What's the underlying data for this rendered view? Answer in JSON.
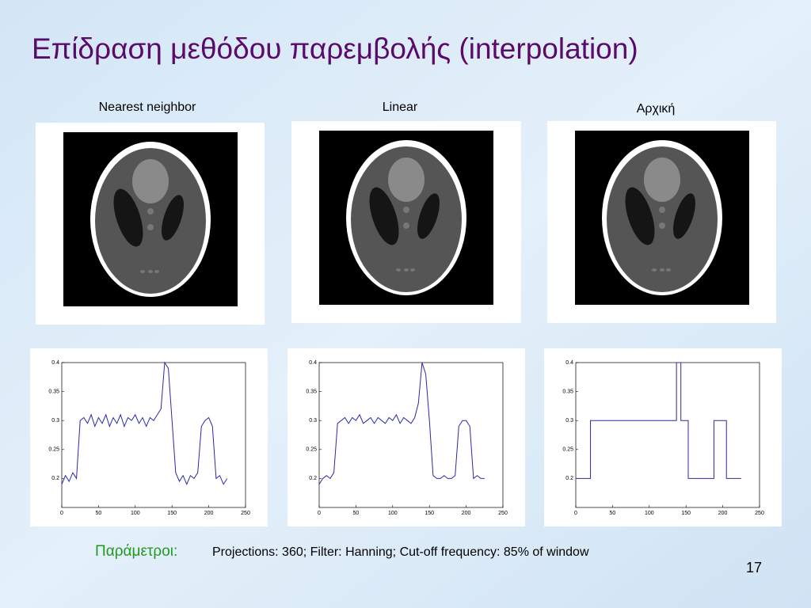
{
  "title": "Επίδραση μεθόδου παρεμβολής (interpolation)",
  "panels": [
    "Nearest neighbor",
    "Linear",
    "Αρχική"
  ],
  "parameters": {
    "label": "Παράμετροι:",
    "text": "Projections: 360; Filter: Hanning;  Cut-off frequency: 85% of window"
  },
  "page_number": "17",
  "chart_data": [
    {
      "type": "line",
      "color": "#2a2aa8",
      "x": [
        0,
        5,
        10,
        15,
        20,
        25,
        30,
        35,
        40,
        45,
        50,
        55,
        60,
        65,
        70,
        75,
        80,
        85,
        90,
        95,
        100,
        105,
        110,
        115,
        120,
        125,
        130,
        135,
        140,
        145,
        150,
        155,
        160,
        165,
        170,
        175,
        180,
        185,
        190,
        195,
        200,
        205,
        210,
        215,
        220,
        225
      ],
      "values": [
        0.19,
        0.205,
        0.195,
        0.21,
        0.2,
        0.3,
        0.305,
        0.295,
        0.31,
        0.29,
        0.305,
        0.295,
        0.31,
        0.29,
        0.305,
        0.295,
        0.31,
        0.29,
        0.305,
        0.3,
        0.31,
        0.295,
        0.305,
        0.29,
        0.305,
        0.3,
        0.31,
        0.32,
        0.4,
        0.39,
        0.3,
        0.21,
        0.195,
        0.205,
        0.19,
        0.205,
        0.2,
        0.21,
        0.29,
        0.3,
        0.305,
        0.29,
        0.2,
        0.205,
        0.19,
        0.2
      ],
      "xlim": [
        0,
        250
      ],
      "ylim": [
        0.15,
        0.4
      ],
      "xticks": [
        0,
        50,
        100,
        150,
        200,
        250
      ],
      "yticks": [
        0.2,
        0.25,
        0.3,
        0.35,
        0.4
      ]
    },
    {
      "type": "line",
      "color": "#2a2aa8",
      "x": [
        0,
        5,
        10,
        15,
        20,
        25,
        30,
        35,
        40,
        45,
        50,
        55,
        60,
        65,
        70,
        75,
        80,
        85,
        90,
        95,
        100,
        105,
        110,
        115,
        120,
        125,
        130,
        135,
        140,
        145,
        150,
        155,
        160,
        165,
        170,
        175,
        180,
        185,
        190,
        195,
        200,
        205,
        210,
        215,
        220,
        225
      ],
      "values": [
        0.19,
        0.2,
        0.205,
        0.2,
        0.21,
        0.295,
        0.3,
        0.305,
        0.295,
        0.305,
        0.3,
        0.31,
        0.295,
        0.3,
        0.305,
        0.295,
        0.305,
        0.3,
        0.295,
        0.305,
        0.3,
        0.31,
        0.295,
        0.305,
        0.3,
        0.295,
        0.305,
        0.33,
        0.4,
        0.38,
        0.3,
        0.205,
        0.2,
        0.2,
        0.205,
        0.2,
        0.2,
        0.205,
        0.29,
        0.3,
        0.3,
        0.29,
        0.2,
        0.205,
        0.2,
        0.2
      ],
      "xlim": [
        0,
        250
      ],
      "ylim": [
        0.15,
        0.4
      ],
      "xticks": [
        0,
        50,
        100,
        150,
        200,
        250
      ],
      "yticks": [
        0.2,
        0.25,
        0.3,
        0.35,
        0.4
      ]
    },
    {
      "type": "line",
      "color": "#2a2aa8",
      "x": [
        0,
        20,
        20,
        137,
        137,
        143,
        143,
        153,
        153,
        188,
        188,
        205,
        205,
        225
      ],
      "values": [
        0.2,
        0.2,
        0.3,
        0.3,
        0.4,
        0.4,
        0.3,
        0.3,
        0.2,
        0.2,
        0.3,
        0.3,
        0.2,
        0.2
      ],
      "xlim": [
        0,
        250
      ],
      "ylim": [
        0.15,
        0.4
      ],
      "xticks": [
        0,
        50,
        100,
        150,
        200,
        250
      ],
      "yticks": [
        0.2,
        0.25,
        0.3,
        0.35,
        0.4
      ]
    }
  ]
}
